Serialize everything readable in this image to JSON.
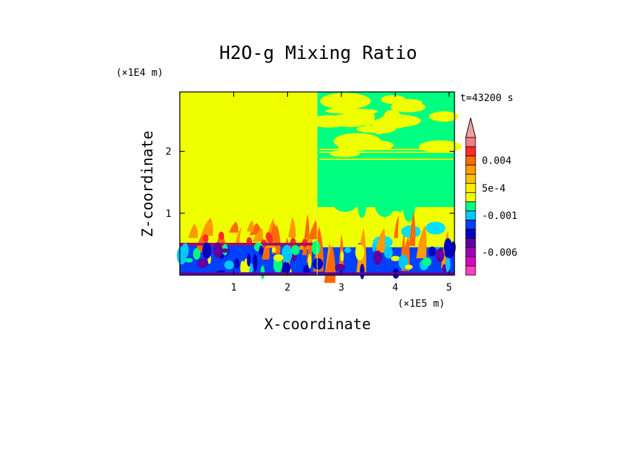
{
  "chart_data": {
    "type": "heatmap",
    "title": "H2O-g Mixing Ratio",
    "xlabel": "X-coordinate",
    "ylabel": "Z-coordinate",
    "x_unit_label": "(×1E5 m)",
    "y_unit_label": "(×1E4 m)",
    "time_label": "t=43200 s",
    "xlim": [
      0,
      5.1
    ],
    "ylim": [
      0,
      2.96
    ],
    "x_ticks": [
      "1",
      "2",
      "3",
      "4",
      "5"
    ],
    "y_ticks": [
      "1",
      "2"
    ],
    "x_tick_values": [
      1,
      2,
      3,
      4,
      5
    ],
    "y_tick_values": [
      1,
      2
    ],
    "colorbar": {
      "labels": [
        "0.004",
        "5e-4",
        "-0.001",
        "-0.006"
      ],
      "label_values": [
        0.004,
        0.0005,
        -0.001,
        -0.006
      ],
      "levels": [
        0.008,
        0.006,
        0.004,
        0.002,
        0.001,
        0.0005,
        0,
        -0.0005,
        -0.001,
        -0.002,
        -0.004,
        -0.005,
        -0.006,
        -0.007,
        -0.008
      ],
      "band_colors": [
        "#f08080",
        "#ff2a2a",
        "#ff6a00",
        "#ff9a00",
        "#ffc000",
        "#ffee00",
        "#f0ff00",
        "#00ff80",
        "#00c8ff",
        "#0040ff",
        "#0000c0",
        "#6000a0",
        "#a000b0",
        "#e000c0",
        "#ff40c0"
      ]
    },
    "regions": [
      {
        "x": [
          0,
          2.55
        ],
        "z": [
          0.5,
          2.96
        ],
        "color": "#f0ff00"
      },
      {
        "x": [
          0,
          2.55
        ],
        "z": [
          0,
          0.5
        ],
        "color": "#0040ff"
      },
      {
        "x": [
          2.55,
          5.1
        ],
        "z": [
          1.1,
          2.96
        ],
        "color": "#00ff80"
      },
      {
        "x": [
          2.55,
          5.1
        ],
        "z": [
          0.45,
          1.1
        ],
        "color": "#f0ff00"
      },
      {
        "x": [
          2.55,
          5.1
        ],
        "z": [
          0,
          0.45
        ],
        "color": "#0040ff"
      }
    ]
  }
}
